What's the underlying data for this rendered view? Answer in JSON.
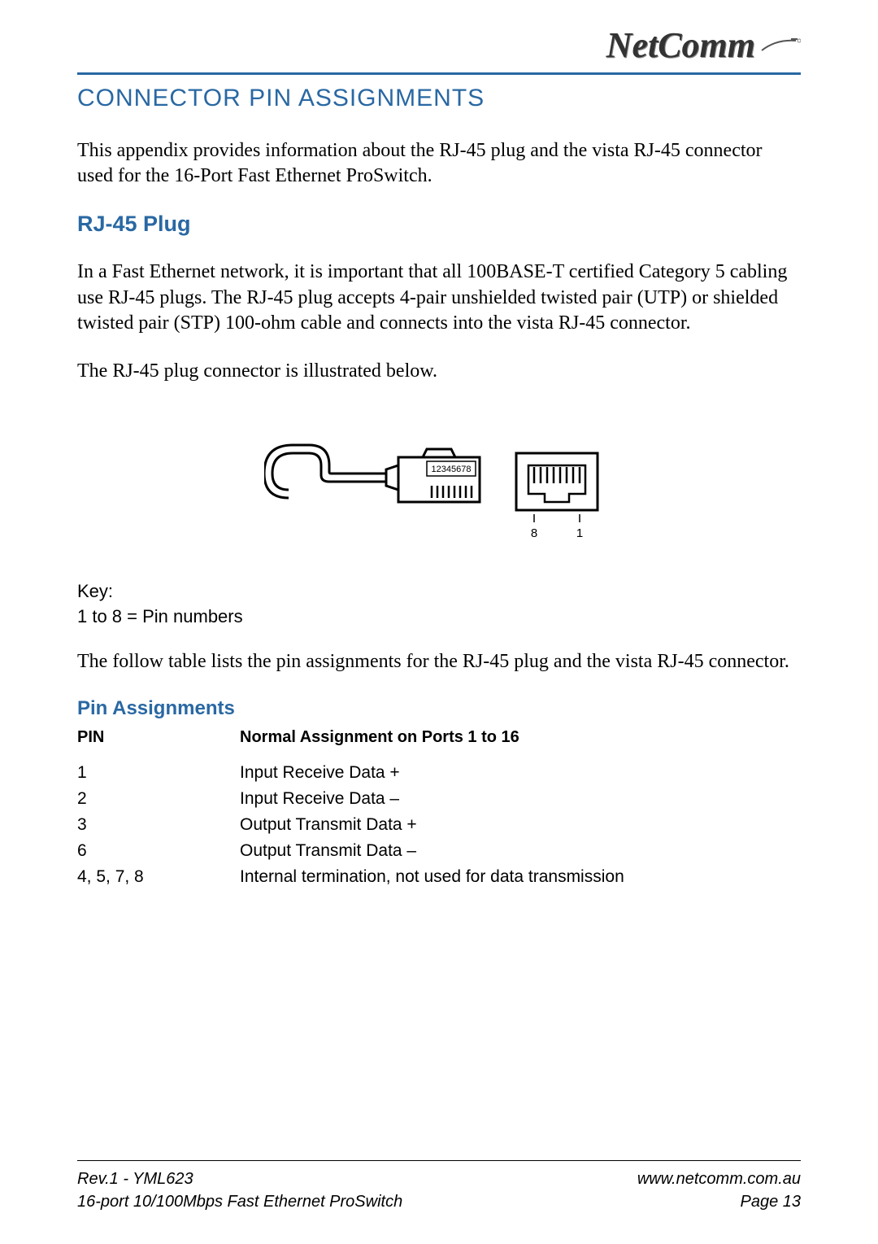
{
  "header": {
    "logo_text": "NetComm"
  },
  "title": "Connector Pin Assignments",
  "intro": "This appendix provides information about the RJ-45 plug and the vista RJ-45 connector used for the 16-Port Fast Ethernet ProSwitch.",
  "section1": {
    "heading": "RJ-45 Plug",
    "para1": "In a Fast Ethernet network, it is important that all 100BASE-T certified Category 5 cabling use RJ-45 plugs. The RJ-45 plug accepts 4-pair unshielded twisted pair (UTP) or shielded twisted pair (STP) 100-ohm cable and connects into the vista RJ-45 connector.",
    "para2": "The RJ-45 plug connector is illustrated below."
  },
  "diagram": {
    "plug_label": "12345678",
    "jack_left_label": "8",
    "jack_right_label": "1"
  },
  "key": {
    "line1": "Key:",
    "line2": "1 to 8 = Pin numbers"
  },
  "table_intro": "The follow table lists the pin assignments for the RJ-45 plug and the vista RJ-45 connector.",
  "table": {
    "heading": "Pin Assignments",
    "col1": "PIN",
    "col2": "Normal Assignment on Ports 1 to 16",
    "rows": [
      {
        "pin": "1",
        "assign": "Input Receive Data +"
      },
      {
        "pin": "2",
        "assign": "Input Receive Data –"
      },
      {
        "pin": "3",
        "assign": "Output Transmit Data +"
      },
      {
        "pin": "6",
        "assign": "Output Transmit Data –"
      },
      {
        "pin": "4, 5, 7, 8",
        "assign": "Internal termination, not used for data transmission"
      }
    ]
  },
  "footer": {
    "left1": "Rev.1 - YML623",
    "right1": "www.netcomm.com.au",
    "left2": "16-port 10/100Mbps Fast Ethernet  ProSwitch",
    "right2": "Page 13"
  },
  "colors": {
    "heading_blue": "#2968a3",
    "text_black": "#000000",
    "background": "#ffffff"
  }
}
